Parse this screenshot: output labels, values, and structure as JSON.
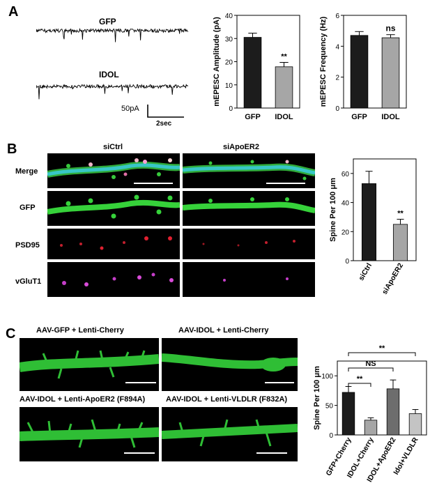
{
  "panelA": {
    "label": "A",
    "traces": [
      {
        "name": "GFP"
      },
      {
        "name": "IDOL"
      }
    ],
    "scale_y": "50pA",
    "scale_x": "2sec"
  },
  "panelB": {
    "label": "B",
    "columns": [
      "siCtrl",
      "siApoER2"
    ],
    "rows": [
      "Merge",
      "GFP",
      "PSD95",
      "vGluT1"
    ]
  },
  "panelC": {
    "label": "C",
    "images": [
      "AAV-GFP + Lenti-Cherry",
      "AAV-IDOL + Lenti-Cherry",
      "AAV-IDOL + Lenti-ApoER2 (F894A)",
      "AAV-IDOL + Lenti-VLDLR (F832A)"
    ]
  },
  "colors": {
    "dark": "#1c1c1c",
    "light": "#a6a6a6",
    "mid": "#6d6d6d",
    "spine_green": "#36d23a",
    "dendrite_cyan": "#38c6c6"
  },
  "chart_data": [
    {
      "id": "amplitude",
      "type": "bar",
      "categories": [
        "GFP",
        "IDOL"
      ],
      "values": [
        30.5,
        17.8
      ],
      "errors": [
        1.8,
        1.9
      ],
      "colors": [
        "#1c1c1c",
        "#a6a6a6"
      ],
      "ylabel": "mEPESC Amplitude (pA)",
      "ylim": [
        0,
        40
      ],
      "yticks": [
        0,
        10,
        20,
        30,
        40
      ],
      "annotations": [
        {
          "text": "**",
          "category": "IDOL"
        }
      ]
    },
    {
      "id": "frequency",
      "type": "bar",
      "categories": [
        "GFP",
        "IDOL"
      ],
      "values": [
        4.7,
        4.55
      ],
      "errors": [
        0.25,
        0.2
      ],
      "colors": [
        "#1c1c1c",
        "#a6a6a6"
      ],
      "ylabel": "mEPESC Frequency (Hz)",
      "ylim": [
        0,
        6
      ],
      "yticks": [
        0,
        2,
        4,
        6
      ],
      "annotations": [
        {
          "text": "ns",
          "category": "IDOL"
        }
      ]
    },
    {
      "id": "spine_b",
      "type": "bar",
      "categories": [
        "siCtrl",
        "siApoER2"
      ],
      "values": [
        53,
        25
      ],
      "errors": [
        8.5,
        3.5
      ],
      "colors": [
        "#1c1c1c",
        "#a6a6a6"
      ],
      "ylabel": "Spine Per 100 μm",
      "ylim": [
        0,
        70
      ],
      "yticks": [
        0,
        20,
        40,
        60
      ],
      "annotations": [
        {
          "text": "**",
          "category": "siApoER2"
        }
      ]
    },
    {
      "id": "spine_c",
      "type": "bar",
      "categories": [
        "GFP+Cherry",
        "IDOL+Cherry",
        "IDOL+ApoER2",
        "Idol+VLDLR"
      ],
      "values": [
        72,
        25,
        78,
        36
      ],
      "errors": [
        10,
        4,
        15,
        7
      ],
      "colors": [
        "#1c1c1c",
        "#a6a6a6",
        "#6d6d6d",
        "#c4c4c4"
      ],
      "ylabel": "Spine Per 100 μm",
      "ylim": [
        0,
        125
      ],
      "yticks": [
        0,
        50,
        100
      ],
      "annotations": [
        {
          "text": "**",
          "from": 0,
          "to": 1,
          "level": 1
        },
        {
          "text": "NS",
          "from": 0,
          "to": 2,
          "level": 2
        },
        {
          "text": "**",
          "from": 0,
          "to": 3,
          "level": 3
        }
      ]
    }
  ]
}
